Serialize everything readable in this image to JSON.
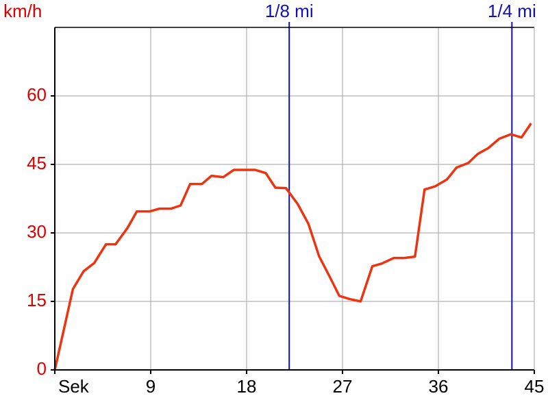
{
  "chart_data": {
    "type": "line",
    "y_label": "km/h",
    "x": [
      0,
      1.7,
      2.7,
      3.7,
      4.8,
      5.7,
      6.8,
      7.7,
      8.9,
      9.8,
      10.9,
      11.8,
      12.7,
      13.8,
      14.7,
      15.8,
      16.8,
      18.8,
      19.8,
      20.7,
      21.7,
      22.8,
      23.8,
      24.8,
      25.8,
      26.7,
      27.7,
      28.7,
      29.8,
      30.7,
      31.8,
      32.8,
      33.8,
      34.7,
      35.7,
      36.8,
      37.7,
      38.8,
      39.7,
      40.7,
      41.7,
      42.8,
      43.8,
      44.7
    ],
    "series": [
      {
        "color": "#ee3311",
        "values": [
          0,
          17.7,
          21.6,
          23.4,
          27.5,
          27.5,
          31,
          34.7,
          34.7,
          35.3,
          35.3,
          36,
          40.7,
          40.7,
          42.5,
          42.2,
          43.8,
          43.8,
          43.1,
          39.9,
          39.8,
          36.3,
          32,
          24.9,
          20.4,
          16.2,
          15.5,
          15,
          22.7,
          23.3,
          24.5,
          24.5,
          24.8,
          39.5,
          40.2,
          41.7,
          44.3,
          45.3,
          47.3,
          48.6,
          50.6,
          51.6,
          50.9,
          54
        ]
      }
    ],
    "xlim": [
      0,
      45
    ],
    "xticks": [
      {
        "value": 0,
        "label": "Sek"
      },
      9,
      18,
      27,
      36,
      45
    ],
    "ylim": [
      0,
      75
    ],
    "yticks": [
      0,
      15,
      30,
      45,
      60
    ],
    "grid": true,
    "axis_color": "#dd0000",
    "markers": [
      {
        "label": "1/8 mi",
        "x": 22
      },
      {
        "label": "1/4 mi",
        "x": 42.9
      }
    ],
    "marker_color": "#1010bb"
  }
}
